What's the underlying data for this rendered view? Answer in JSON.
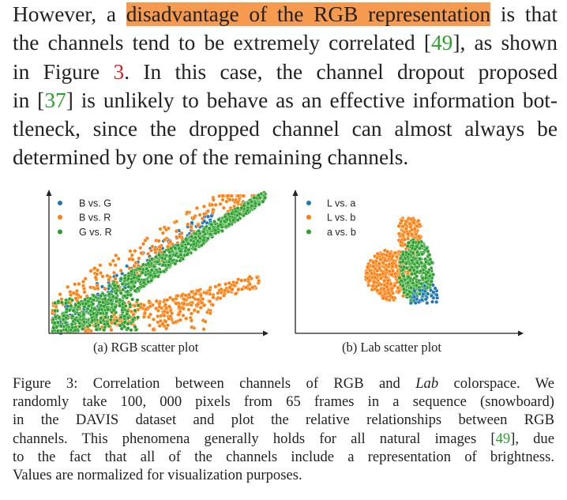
{
  "paragraph": {
    "l1_pre": "However, a ",
    "l1_hl": "disadvantage of the RGB representation",
    "l1_post": " is that",
    "l2_pre": "the channels tend to be extremely correlated [",
    "l2_cite": "49",
    "l2_post": "], as shown",
    "l3_pre": "in Figure ",
    "l3_ref": "3",
    "l3_post": ".  In this case, the channel dropout proposed",
    "l4_pre": "in [",
    "l4_cite": "37",
    "l4_post": "] is unlikely to behave as an effective information bot-",
    "l5": "tleneck, since the dropped channel can almost always be",
    "l6": "determined by one of the remaining channels."
  },
  "figure": {
    "colors": {
      "blue": "#1f77b4",
      "orange": "#ff7f0e",
      "green": "#2ca02c"
    },
    "left_legend": [
      "B vs. G",
      "B vs. R",
      "G vs. R"
    ],
    "right_legend": [
      "L vs. a",
      "L vs. b",
      "a vs. b"
    ],
    "left_caption": "(a) RGB scatter plot",
    "right_caption": "(b) Lab scatter plot"
  },
  "caption": {
    "l1_pre": "Figure 3: Correlation between channels of RGB and ",
    "l1_it": "Lab",
    "l1_post": " colorspace. We",
    "l2": "randomly take 100, 000 pixels from 65 frames in a sequence (snowboard)",
    "l3": "in the DAVIS dataset and plot the relative relationships between RGB",
    "l4_pre": "channels. This phenomena generally holds for all natural images [",
    "l4_cite": "49",
    "l4_post": "], due",
    "l5": "to the fact that all of the channels include a representation of brightness.",
    "l6": "Values are normalized for visualization purposes."
  }
}
